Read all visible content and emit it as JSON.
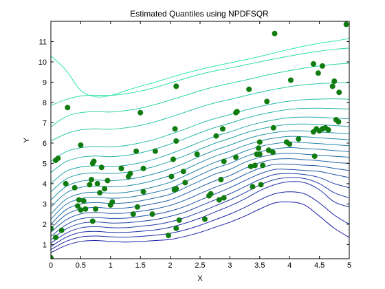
{
  "chart_data": {
    "type": "line",
    "title": "Estimated Quantiles using NPDFSQR",
    "xlabel": "X",
    "ylabel": "Y",
    "xlim": [
      0,
      5
    ],
    "ylim": [
      0.3,
      12
    ],
    "x_ticks": [
      0,
      0.5,
      1,
      1.5,
      2,
      2.5,
      3,
      3.5,
      4,
      4.5,
      5
    ],
    "y_ticks": [
      1,
      2,
      3,
      4,
      5,
      6,
      7,
      8,
      9,
      10,
      11
    ],
    "x_tick_labels": [
      "0",
      "0.5",
      "1",
      "1.5",
      "2",
      "2.5",
      "3",
      "3.5",
      "4",
      "4.5",
      "5"
    ],
    "y_tick_labels": [
      "1",
      "2",
      "3",
      "4",
      "5",
      "6",
      "7",
      "8",
      "9",
      "10",
      "11"
    ],
    "grid": false,
    "colors": {
      "low_quantile": "#1919a6",
      "high_quantile": "#2ce8a6",
      "points": "#107c10",
      "axes": "#000000"
    },
    "quantile_curves": {
      "x": [
        0,
        0.25,
        0.5,
        0.75,
        1,
        1.25,
        1.5,
        1.75,
        2,
        2.25,
        2.5,
        2.75,
        3,
        3.25,
        3.5,
        3.75,
        4,
        4.25,
        4.5,
        4.75,
        5
      ],
      "series": [
        {
          "values": [
            0.6,
            0.95,
            1.15,
            1.2,
            1.15,
            1.12,
            1.15,
            1.2,
            1.25,
            1.4,
            1.6,
            1.85,
            2.1,
            2.4,
            2.75,
            3.05,
            3.1,
            2.95,
            2.4,
            1.8,
            1.35
          ]
        },
        {
          "values": [
            0.75,
            1.15,
            1.37,
            1.42,
            1.38,
            1.36,
            1.4,
            1.46,
            1.55,
            1.72,
            1.95,
            2.22,
            2.5,
            2.83,
            3.2,
            3.5,
            3.6,
            3.5,
            3.05,
            2.45,
            2.0
          ]
        },
        {
          "values": [
            0.9,
            1.35,
            1.6,
            1.65,
            1.6,
            1.6,
            1.65,
            1.72,
            1.85,
            2.05,
            2.3,
            2.6,
            2.9,
            3.25,
            3.65,
            3.95,
            4.1,
            4.05,
            3.7,
            3.1,
            2.85
          ]
        },
        {
          "values": [
            1.07,
            1.55,
            1.82,
            1.88,
            1.83,
            1.83,
            1.9,
            1.98,
            2.12,
            2.33,
            2.6,
            2.9,
            3.2,
            3.55,
            3.93,
            4.2,
            4.3,
            4.25,
            4.0,
            3.55,
            3.3
          ]
        },
        {
          "values": [
            1.23,
            1.76,
            2.04,
            2.11,
            2.06,
            2.07,
            2.14,
            2.23,
            2.39,
            2.6,
            2.9,
            3.2,
            3.5,
            3.85,
            4.2,
            4.45,
            4.5,
            4.45,
            4.3,
            4.0,
            3.8
          ]
        },
        {
          "values": [
            1.4,
            1.96,
            2.27,
            2.33,
            2.29,
            2.3,
            2.39,
            2.49,
            2.65,
            2.88,
            3.19,
            3.49,
            3.8,
            4.15,
            4.48,
            4.7,
            4.7,
            4.65,
            4.6,
            4.45,
            4.3
          ]
        },
        {
          "values": [
            1.6,
            2.21,
            2.51,
            2.58,
            2.53,
            2.55,
            2.64,
            2.76,
            2.93,
            3.19,
            3.51,
            3.82,
            4.1,
            4.45,
            4.76,
            4.95,
            4.96,
            4.91,
            4.87,
            4.75,
            4.65
          ]
        },
        {
          "values": [
            1.8,
            2.46,
            2.76,
            2.83,
            2.78,
            2.8,
            2.9,
            3.03,
            3.2,
            3.5,
            3.83,
            4.14,
            4.4,
            4.75,
            5.03,
            5.2,
            5.23,
            5.18,
            5.13,
            5.05,
            5.0
          ]
        },
        {
          "values": [
            2.0,
            2.71,
            3.0,
            3.07,
            3.02,
            3.05,
            3.15,
            3.3,
            3.48,
            3.8,
            4.14,
            4.47,
            4.7,
            5.05,
            5.3,
            5.45,
            5.5,
            5.45,
            5.4,
            5.35,
            5.3
          ]
        },
        {
          "values": [
            2.25,
            2.97,
            3.26,
            3.33,
            3.28,
            3.31,
            3.42,
            3.58,
            3.77,
            4.09,
            4.43,
            4.76,
            5.0,
            5.32,
            5.57,
            5.71,
            5.78,
            5.73,
            5.69,
            5.63,
            5.58
          ]
        },
        {
          "values": [
            2.5,
            3.22,
            3.51,
            3.58,
            3.53,
            3.57,
            3.69,
            3.86,
            4.07,
            4.39,
            4.73,
            5.05,
            5.3,
            5.6,
            5.83,
            5.97,
            6.05,
            6.02,
            5.97,
            5.92,
            5.87
          ]
        },
        {
          "values": [
            2.85,
            3.53,
            3.82,
            3.88,
            3.84,
            3.88,
            4.0,
            4.18,
            4.4,
            4.7,
            5.04,
            5.35,
            5.6,
            5.88,
            6.1,
            6.25,
            6.33,
            6.31,
            6.26,
            6.21,
            6.16
          ]
        },
        {
          "values": [
            3.2,
            3.85,
            4.12,
            4.18,
            4.15,
            4.2,
            4.32,
            4.5,
            4.73,
            5.02,
            5.35,
            5.65,
            5.9,
            6.17,
            6.38,
            6.52,
            6.6,
            6.6,
            6.55,
            6.5,
            6.45
          ]
        },
        {
          "values": [
            3.6,
            4.22,
            4.47,
            4.53,
            4.5,
            4.55,
            4.68,
            4.86,
            5.1,
            5.38,
            5.7,
            5.99,
            6.23,
            6.49,
            6.69,
            6.83,
            6.92,
            6.94,
            6.91,
            6.86,
            6.82
          ]
        },
        {
          "values": [
            4.0,
            4.6,
            4.82,
            4.88,
            4.85,
            4.9,
            5.03,
            5.22,
            5.47,
            5.75,
            6.05,
            6.33,
            6.55,
            6.8,
            7.0,
            7.15,
            7.25,
            7.28,
            7.27,
            7.23,
            7.2
          ]
        },
        {
          "values": [
            4.55,
            5.08,
            5.3,
            5.36,
            5.33,
            5.39,
            5.52,
            5.71,
            5.95,
            6.22,
            6.51,
            6.77,
            6.98,
            7.21,
            7.4,
            7.55,
            7.66,
            7.71,
            7.72,
            7.7,
            7.68
          ]
        },
        {
          "values": [
            5.1,
            5.57,
            5.77,
            5.83,
            5.81,
            5.88,
            6.01,
            6.19,
            6.43,
            6.69,
            6.97,
            7.21,
            7.4,
            7.62,
            7.8,
            7.95,
            8.07,
            8.14,
            8.17,
            8.18,
            8.16
          ]
        },
        {
          "values": [
            6.1,
            6.45,
            6.65,
            6.7,
            6.68,
            6.75,
            6.87,
            7.05,
            7.28,
            7.52,
            7.77,
            7.98,
            8.15,
            8.33,
            8.5,
            8.65,
            8.78,
            8.87,
            8.93,
            8.97,
            8.98
          ]
        },
        {
          "values": [
            6.8,
            7.3,
            7.5,
            7.55,
            7.53,
            7.6,
            7.72,
            7.9,
            8.12,
            8.35,
            8.58,
            8.78,
            8.94,
            9.1,
            9.27,
            9.43,
            9.57,
            9.7,
            9.8,
            9.88,
            9.93
          ]
        },
        {
          "values": [
            7.85,
            8.14,
            8.32,
            8.36,
            8.35,
            8.43,
            8.56,
            8.74,
            8.96,
            9.18,
            9.39,
            9.56,
            9.7,
            9.85,
            10.0,
            10.15,
            10.29,
            10.42,
            10.53,
            10.62,
            10.68
          ]
        },
        {
          "values": [
            10.3,
            9.6,
            8.6,
            8.28,
            8.35,
            8.58,
            8.8,
            9.0,
            9.23,
            9.44,
            9.63,
            9.8,
            9.95,
            10.1,
            10.27,
            10.45,
            10.62,
            10.78,
            10.92,
            11.03,
            11.15
          ]
        }
      ]
    },
    "points": [
      [
        0.0,
        0.35
      ],
      [
        0.0,
        1.8
      ],
      [
        0.08,
        1.35
      ],
      [
        0.08,
        5.15
      ],
      [
        0.12,
        5.25
      ],
      [
        0.18,
        1.7
      ],
      [
        0.25,
        4.0
      ],
      [
        0.28,
        7.75
      ],
      [
        0.4,
        3.8
      ],
      [
        0.45,
        2.9
      ],
      [
        0.47,
        3.2
      ],
      [
        0.5,
        2.7
      ],
      [
        0.5,
        5.9
      ],
      [
        0.55,
        3.15
      ],
      [
        0.58,
        2.75
      ],
      [
        0.65,
        3.95
      ],
      [
        0.68,
        4.2
      ],
      [
        0.7,
        2.15
      ],
      [
        0.7,
        5.0
      ],
      [
        0.72,
        5.1
      ],
      [
        0.75,
        2.75
      ],
      [
        0.78,
        4.0
      ],
      [
        0.82,
        3.55
      ],
      [
        0.85,
        4.8
      ],
      [
        0.9,
        3.75
      ],
      [
        0.95,
        4.15
      ],
      [
        1.0,
        2.95
      ],
      [
        1.03,
        3.1
      ],
      [
        1.18,
        4.75
      ],
      [
        1.3,
        4.35
      ],
      [
        1.33,
        4.5
      ],
      [
        1.38,
        2.5
      ],
      [
        1.43,
        5.6
      ],
      [
        1.45,
        2.85
      ],
      [
        1.5,
        7.5
      ],
      [
        1.55,
        3.6
      ],
      [
        1.55,
        4.75
      ],
      [
        1.7,
        2.5
      ],
      [
        1.75,
        5.6
      ],
      [
        1.97,
        1.45
      ],
      [
        2.02,
        4.35
      ],
      [
        2.05,
        5.2
      ],
      [
        2.07,
        3.7
      ],
      [
        2.08,
        6.7
      ],
      [
        2.1,
        3.75
      ],
      [
        2.1,
        8.8
      ],
      [
        2.1,
        6.1
      ],
      [
        2.1,
        1.8
      ],
      [
        2.15,
        2.2
      ],
      [
        2.22,
        4.6
      ],
      [
        2.25,
        4.05
      ],
      [
        2.45,
        5.45
      ],
      [
        2.58,
        2.25
      ],
      [
        2.65,
        3.4
      ],
      [
        2.68,
        3.5
      ],
      [
        2.77,
        6.35
      ],
      [
        2.82,
        3.2
      ],
      [
        2.85,
        4.2
      ],
      [
        2.88,
        6.7
      ],
      [
        2.9,
        3.3
      ],
      [
        2.9,
        5.1
      ],
      [
        3.1,
        7.5
      ],
      [
        3.1,
        5.3
      ],
      [
        3.12,
        7.55
      ],
      [
        3.32,
        8.65
      ],
      [
        3.35,
        4.85
      ],
      [
        3.38,
        3.85
      ],
      [
        3.42,
        4.9
      ],
      [
        3.45,
        5.45
      ],
      [
        3.48,
        5.75
      ],
      [
        3.5,
        6.05
      ],
      [
        3.5,
        5.45
      ],
      [
        3.52,
        3.95
      ],
      [
        3.55,
        4.9
      ],
      [
        3.62,
        8.05
      ],
      [
        3.65,
        5.65
      ],
      [
        3.72,
        5.55
      ],
      [
        3.73,
        6.75
      ],
      [
        3.75,
        11.4
      ],
      [
        3.95,
        6.05
      ],
      [
        4.0,
        5.95
      ],
      [
        4.02,
        9.1
      ],
      [
        4.15,
        6.2
      ],
      [
        4.4,
        9.9
      ],
      [
        4.4,
        6.55
      ],
      [
        4.42,
        5.35
      ],
      [
        4.45,
        6.7
      ],
      [
        4.48,
        9.45
      ],
      [
        4.5,
        6.6
      ],
      [
        4.55,
        9.8
      ],
      [
        4.55,
        6.7
      ],
      [
        4.6,
        6.75
      ],
      [
        4.65,
        6.65
      ],
      [
        4.72,
        8.8
      ],
      [
        4.75,
        9.05
      ],
      [
        4.78,
        7.15
      ],
      [
        4.82,
        7.05
      ],
      [
        4.83,
        8.5
      ],
      [
        4.95,
        11.85
      ]
    ]
  }
}
